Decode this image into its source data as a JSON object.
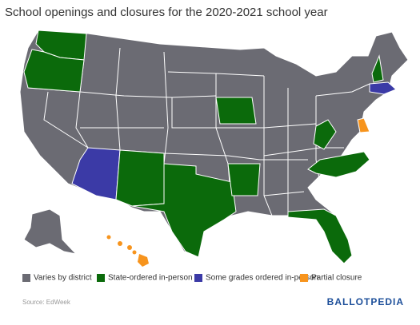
{
  "title": "School openings and closures for the 2020-2021 school year",
  "legend": [
    {
      "label": "Varies by district",
      "color": "#6b6b73"
    },
    {
      "label": "State-ordered in-person",
      "color": "#0b6a0b"
    },
    {
      "label": "Some grades ordered in-person",
      "color": "#3b3aa6"
    },
    {
      "label": "Partial closure",
      "color": "#f7941d"
    }
  ],
  "source": "Source: EdWeek",
  "logo": "BALLOTPEDIA"
}
